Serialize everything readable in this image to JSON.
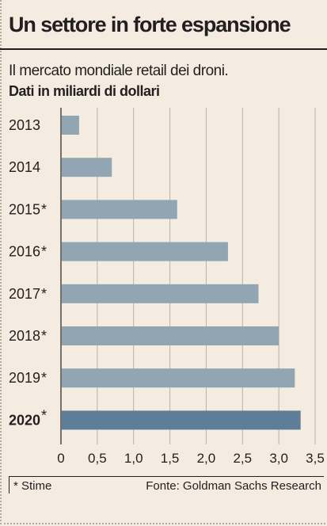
{
  "header": {
    "title": "Un settore in forte espansione",
    "subtitle": "Il mercato mondiale retail dei droni.",
    "unit_label": "Dati in miliardi di dollari"
  },
  "footer": {
    "note": "* Stime",
    "source": "Fonte: Goldman Sachs Research"
  },
  "colors": {
    "background": "#f4ece0",
    "bar": "#91a6b2",
    "bar_highlight": "#5e7d96",
    "gridline": "#b9b1a6",
    "text": "#231f20"
  },
  "chart_data": {
    "type": "bar",
    "orientation": "horizontal",
    "categories": [
      "2013",
      "2014",
      "2015*",
      "2016*",
      "2017*",
      "2018*",
      "2019*",
      "2020*"
    ],
    "values": [
      0.25,
      0.7,
      1.6,
      2.3,
      2.72,
      3.0,
      3.22,
      3.3
    ],
    "highlight_category": "2020*",
    "xlim": [
      0,
      3.5
    ],
    "xticks": [
      0,
      0.5,
      1.0,
      1.5,
      2.0,
      2.5,
      3.0,
      3.5
    ],
    "xtick_labels": [
      "0",
      "0,5",
      "1,0",
      "1,5",
      "2,0",
      "2,5",
      "3,0",
      "3,5"
    ],
    "grid": true,
    "legend": "none"
  }
}
